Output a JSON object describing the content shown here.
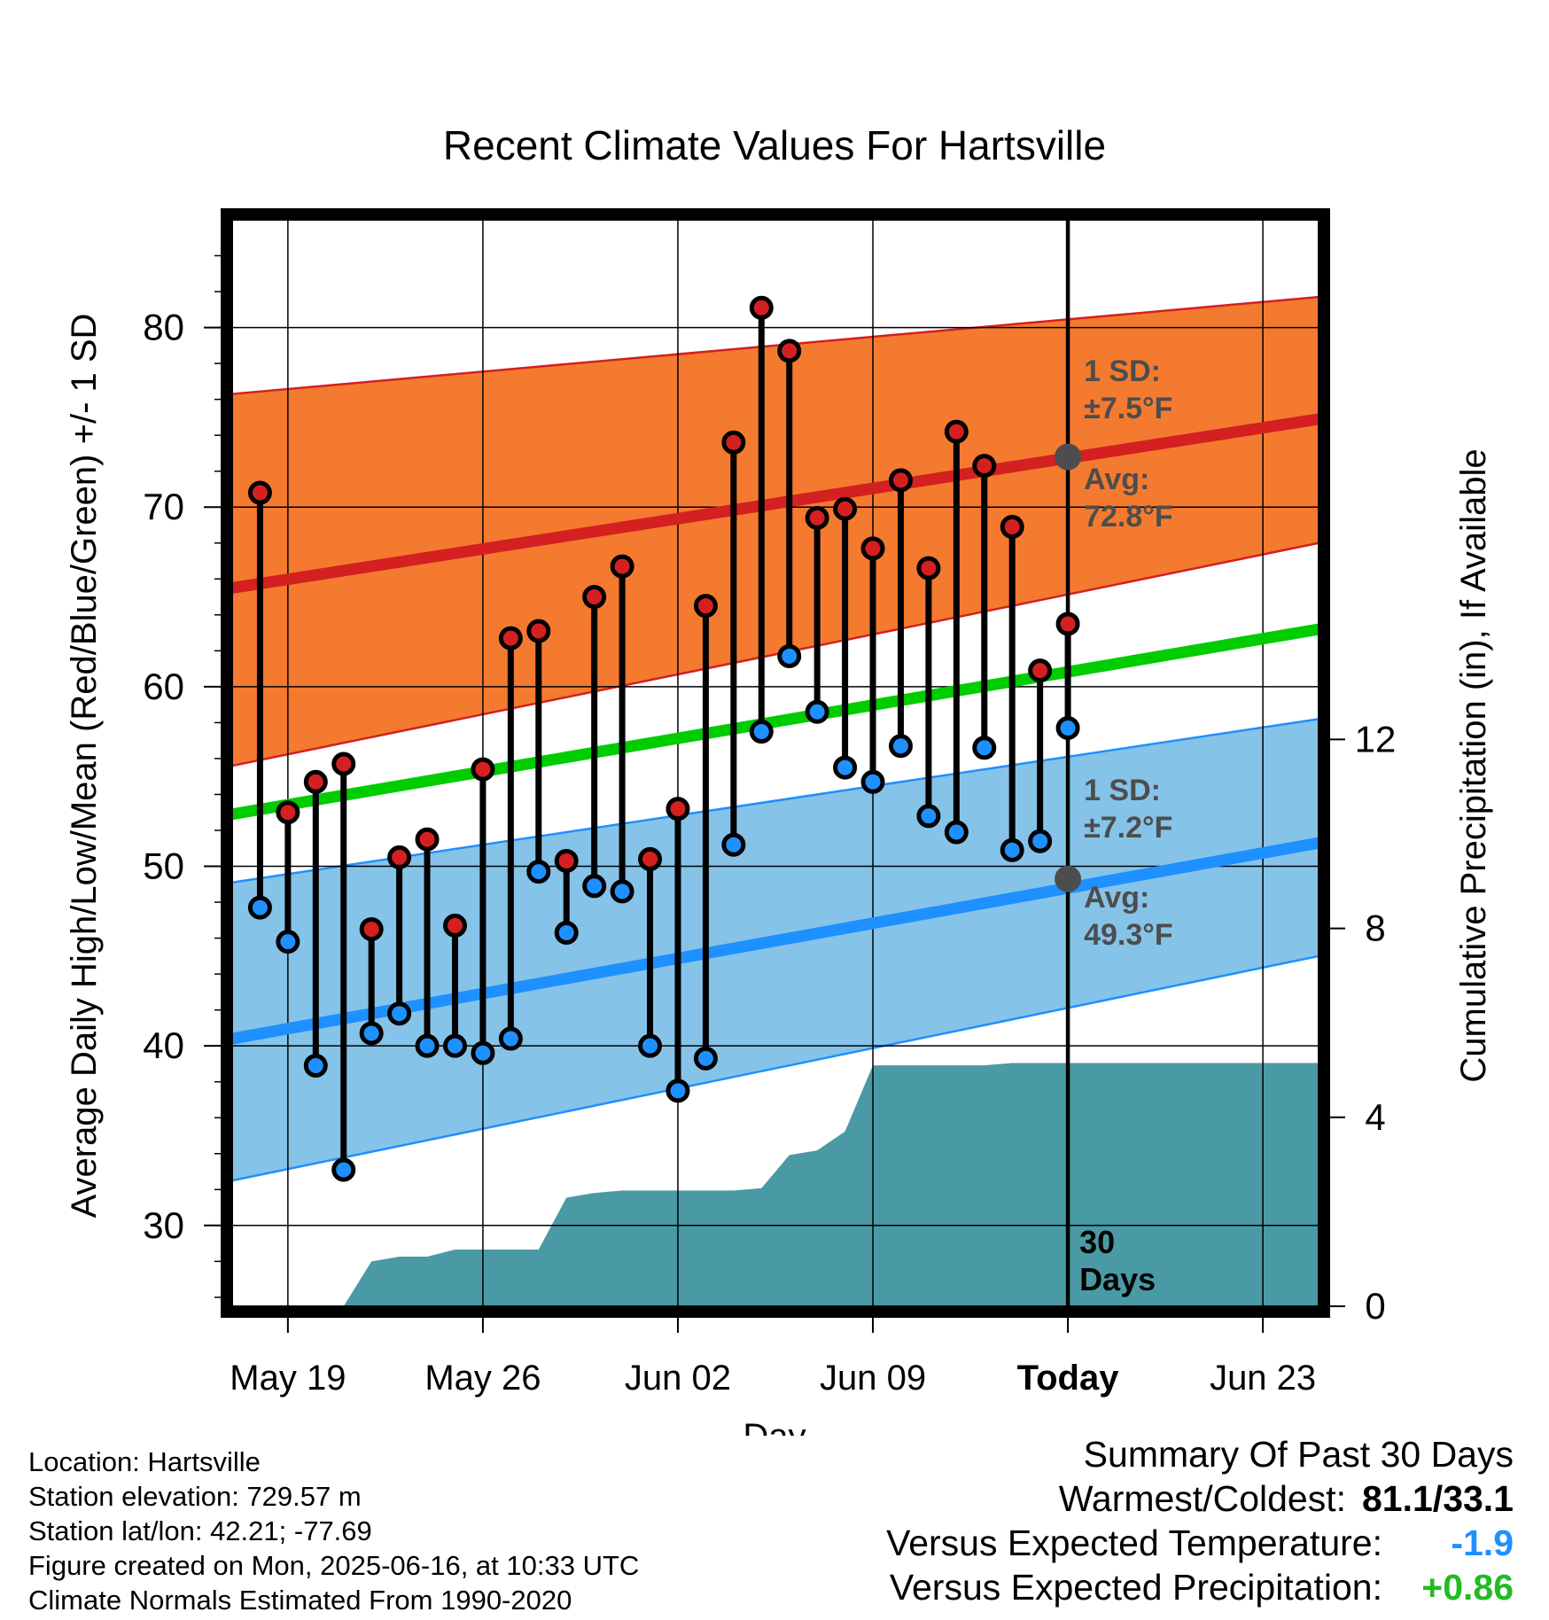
{
  "chart_data": {
    "type": "line",
    "title": "Recent Climate Values For Hartsville",
    "xlabel": "Day",
    "ylabel": "Average Daily High/Low/Mean (Red/Blue/Green) +/- 1 SD",
    "y2label": "Cumulative Precipitation (in), If Available",
    "ylim": [
      25.5,
      86
    ],
    "y2lim": [
      0,
      23
    ],
    "y_ticks": [
      "30",
      "40",
      "50",
      "60",
      "70",
      "80"
    ],
    "y2_ticks": [
      "0",
      "4",
      "8",
      "12"
    ],
    "x_ticks": [
      "May 19",
      "May 26",
      "Jun 02",
      "Jun 09",
      "Today",
      "Jun 23"
    ],
    "x_range": [
      "2025-05-17",
      "2025-06-25"
    ],
    "today": "2025-06-16",
    "today_label": "Today",
    "days_label_line1": "30",
    "days_label_line2": "Days",
    "colors": {
      "high_band": "#f47a2f",
      "high_avg": "#d42020",
      "low_band": "#86c3e8",
      "low_avg": "#1e90ff",
      "mean": "#00cc00",
      "precip": "#4a9aa5",
      "high_dot": "#d42020",
      "low_dot": "#1e90ff"
    },
    "normals": {
      "dates": [
        "2025-05-17",
        "2025-06-25"
      ],
      "high_avg": [
        65.5,
        74.9
      ],
      "high_upper": [
        76.3,
        81.7
      ],
      "high_lower": [
        55.6,
        68.0
      ],
      "low_avg": [
        40.4,
        51.3
      ],
      "low_upper": [
        49.1,
        58.2
      ],
      "low_lower": [
        32.5,
        45.0
      ],
      "mean": [
        52.9,
        63.2
      ]
    },
    "annotations": {
      "high_sd_title": "1 SD:",
      "high_sd_value": "±7.5°F",
      "high_avg_title": "Avg:",
      "high_avg_value": "72.8°F",
      "low_sd_title": "1 SD:",
      "low_sd_value": "±7.2°F",
      "low_avg_title": "Avg:",
      "low_avg_value": "49.3°F",
      "high_avg_today": 72.8,
      "low_avg_today": 49.3
    },
    "observations": {
      "dates": [
        "2025-05-18",
        "2025-05-19",
        "2025-05-20",
        "2025-05-21",
        "2025-05-22",
        "2025-05-23",
        "2025-05-24",
        "2025-05-25",
        "2025-05-26",
        "2025-05-27",
        "2025-05-28",
        "2025-05-29",
        "2025-05-30",
        "2025-05-31",
        "2025-06-01",
        "2025-06-02",
        "2025-06-03",
        "2025-06-04",
        "2025-06-05",
        "2025-06-06",
        "2025-06-07",
        "2025-06-08",
        "2025-06-09",
        "2025-06-10",
        "2025-06-11",
        "2025-06-12",
        "2025-06-13",
        "2025-06-14",
        "2025-06-15",
        "2025-06-16"
      ],
      "highs": [
        70.8,
        53.0,
        54.7,
        55.7,
        46.5,
        50.5,
        51.5,
        46.7,
        55.4,
        62.7,
        63.1,
        50.3,
        65.0,
        66.7,
        50.4,
        53.2,
        64.5,
        73.6,
        81.1,
        78.7,
        69.4,
        69.9,
        67.7,
        71.5,
        66.6,
        74.2,
        72.3,
        68.9,
        60.9,
        63.5
      ],
      "lows": [
        47.7,
        45.8,
        38.9,
        33.1,
        40.7,
        41.8,
        40.0,
        40.0,
        39.6,
        40.4,
        49.7,
        46.3,
        48.9,
        48.6,
        40.0,
        37.5,
        39.3,
        51.2,
        57.5,
        61.7,
        58.6,
        55.5,
        54.7,
        56.7,
        52.8,
        51.9,
        56.6,
        50.9,
        51.4,
        57.7
      ]
    },
    "precipitation": {
      "dates": [
        "2025-05-19",
        "2025-05-20",
        "2025-05-21",
        "2025-05-22",
        "2025-05-23",
        "2025-05-24",
        "2025-05-25",
        "2025-05-26",
        "2025-05-27",
        "2025-05-28",
        "2025-05-29",
        "2025-05-30",
        "2025-05-31",
        "2025-06-01",
        "2025-06-02",
        "2025-06-03",
        "2025-06-04",
        "2025-06-05",
        "2025-06-06",
        "2025-06-07",
        "2025-06-08",
        "2025-06-09",
        "2025-06-10",
        "2025-06-11",
        "2025-06-12",
        "2025-06-13",
        "2025-06-14",
        "2025-06-15",
        "2025-06-16",
        "2025-06-25"
      ],
      "values": [
        0,
        0,
        0,
        0.95,
        1.05,
        1.05,
        1.2,
        1.2,
        1.2,
        1.2,
        2.3,
        2.4,
        2.45,
        2.45,
        2.45,
        2.45,
        2.45,
        2.5,
        3.2,
        3.3,
        3.7,
        5.1,
        5.1,
        5.1,
        5.1,
        5.1,
        5.15,
        5.15,
        5.15,
        5.15
      ]
    }
  },
  "footer": {
    "location": "Location: Hartsville",
    "elevation": "Station elevation: 729.57 m",
    "latlon": "Station lat/lon: 42.21; -77.69",
    "created": "Figure created on Mon, 2025-06-16, at 10:33 UTC",
    "normals": "Climate Normals Estimated From 1990-2020"
  },
  "summary": {
    "heading": "Summary Of Past 30 Days",
    "warmest_coldest_label": "Warmest/Coldest:",
    "warmest_coldest_value": "81.1/33.1",
    "temp_label": "Versus Expected Temperature:",
    "temp_value": "-1.9",
    "temp_color": "#1e90ff",
    "precip_label": "Versus Expected Precipitation:",
    "precip_value": "+0.86",
    "precip_color": "#22bb22"
  }
}
